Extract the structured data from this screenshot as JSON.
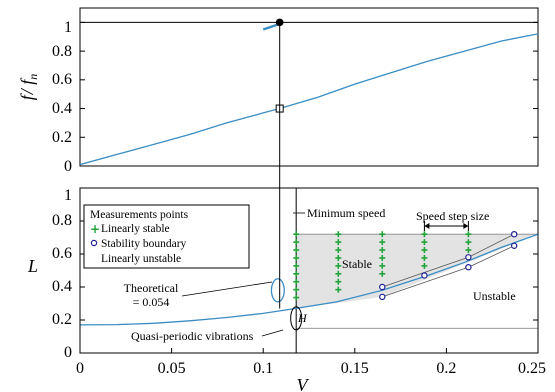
{
  "chart_data": [
    {
      "type": "line",
      "panel": "top",
      "ylabel": "f / f_n",
      "ylabel_main": "f",
      "ylabel_sub": "n",
      "ylabel_sep": "/ f",
      "xlim": [
        0,
        0.25
      ],
      "ylim": [
        0,
        1.1
      ],
      "yticks": [
        "0",
        "0.2",
        "0.4",
        "0.6",
        "0.8",
        "1"
      ],
      "yticks_values": [
        0,
        0.2,
        0.4,
        0.6,
        0.8,
        1
      ],
      "hline": 1,
      "curve": {
        "x": [
          0.0,
          0.02,
          0.04,
          0.06,
          0.08,
          0.1,
          0.109,
          0.13,
          0.15,
          0.17,
          0.19,
          0.21,
          0.23,
          0.25
        ],
        "y": [
          0.01,
          0.08,
          0.15,
          0.22,
          0.3,
          0.37,
          0.4,
          0.48,
          0.57,
          0.65,
          0.73,
          0.8,
          0.87,
          0.92
        ]
      },
      "markers": [
        {
          "shape": "filled-circle",
          "x": 0.109,
          "y": 1.0
        },
        {
          "shape": "open-square",
          "x": 0.109,
          "y": 0.4
        }
      ],
      "short_segment": {
        "x": [
          0.1,
          0.108
        ],
        "y": [
          0.95,
          0.985
        ]
      }
    },
    {
      "type": "line",
      "panel": "bottom",
      "xlabel": "V",
      "ylabel": "L",
      "xlim": [
        0,
        0.25
      ],
      "ylim": [
        0,
        1
      ],
      "xticks": [
        "0",
        "0.05",
        "0.1",
        "0.15",
        "0.2",
        "0.25"
      ],
      "xticks_values": [
        0,
        0.05,
        0.1,
        0.15,
        0.2,
        0.25
      ],
      "yticks": [
        "0",
        "0.2",
        "0.4",
        "0.6",
        "0.8",
        "1"
      ],
      "yticks_values": [
        0,
        0.2,
        0.4,
        0.6,
        0.8,
        1
      ],
      "theoretical_curve": {
        "x": [
          0.0,
          0.02,
          0.04,
          0.06,
          0.08,
          0.1,
          0.118,
          0.14,
          0.165,
          0.19,
          0.21,
          0.23,
          0.25
        ],
        "y": [
          0.17,
          0.172,
          0.18,
          0.195,
          0.215,
          0.24,
          0.27,
          0.31,
          0.38,
          0.47,
          0.55,
          0.64,
          0.72
        ]
      },
      "stable_region_polygon": {
        "x": [
          0.118,
          0.118,
          0.25,
          0.25,
          0.165,
          0.118
        ],
        "y": [
          0.27,
          0.72,
          0.72,
          0.72,
          0.34,
          0.27
        ]
      },
      "boundary_lines": {
        "upper": {
          "x": [
            0.165,
            0.212,
            0.237
          ],
          "y": [
            0.4,
            0.58,
            0.72
          ]
        },
        "lower": {
          "x": [
            0.165,
            0.212,
            0.237
          ],
          "y": [
            0.34,
            0.52,
            0.65
          ]
        }
      },
      "minimum_speed_x": 0.118,
      "baseline_y": 0.15,
      "linearly_stable_points": {
        "x_columns": [
          0.118,
          0.141,
          0.165,
          0.188,
          0.212
        ],
        "y_tops": [
          0.72,
          0.72,
          0.72,
          0.72,
          0.72
        ],
        "y_bottoms": [
          0.33,
          0.36,
          0.44,
          0.5,
          0.62
        ],
        "step": 0.048
      },
      "stability_boundary_points": {
        "x": [
          0.165,
          0.165,
          0.188,
          0.212,
          0.212,
          0.237,
          0.237
        ],
        "y": [
          0.4,
          0.34,
          0.47,
          0.58,
          0.52,
          0.72,
          0.65
        ]
      },
      "quasi_periodic_loop": {
        "cx": 0.108,
        "cy": 0.38,
        "rx": 0.0035,
        "ry": 0.07
      },
      "H_ellipse": {
        "cx": 0.118,
        "cy": 0.21,
        "rx": 0.003,
        "ry": 0.07
      },
      "vertical_link_x": 0.109,
      "legend": {
        "title": "Measurements points",
        "items": [
          {
            "marker": "plus",
            "label": "Linearly stable"
          },
          {
            "marker": "circle",
            "label": "Stability boundary"
          },
          {
            "marker": "none",
            "label": "Linearly unstable"
          }
        ]
      },
      "annotations": {
        "minimum_speed": "Minimum speed",
        "speed_step_size": "Speed step size",
        "stable": "Stable",
        "unstable": "Unstable",
        "theoretical_line1": "Theoretical",
        "theoretical_line2": "= 0.054",
        "quasi_periodic": "Quasi-periodic vibrations",
        "H": "H"
      },
      "colors": {
        "curve": "#3a8dc4",
        "stable_fill": "#e3e3e3",
        "plus": "#22a43a",
        "circle": "#1d1f96"
      }
    }
  ]
}
